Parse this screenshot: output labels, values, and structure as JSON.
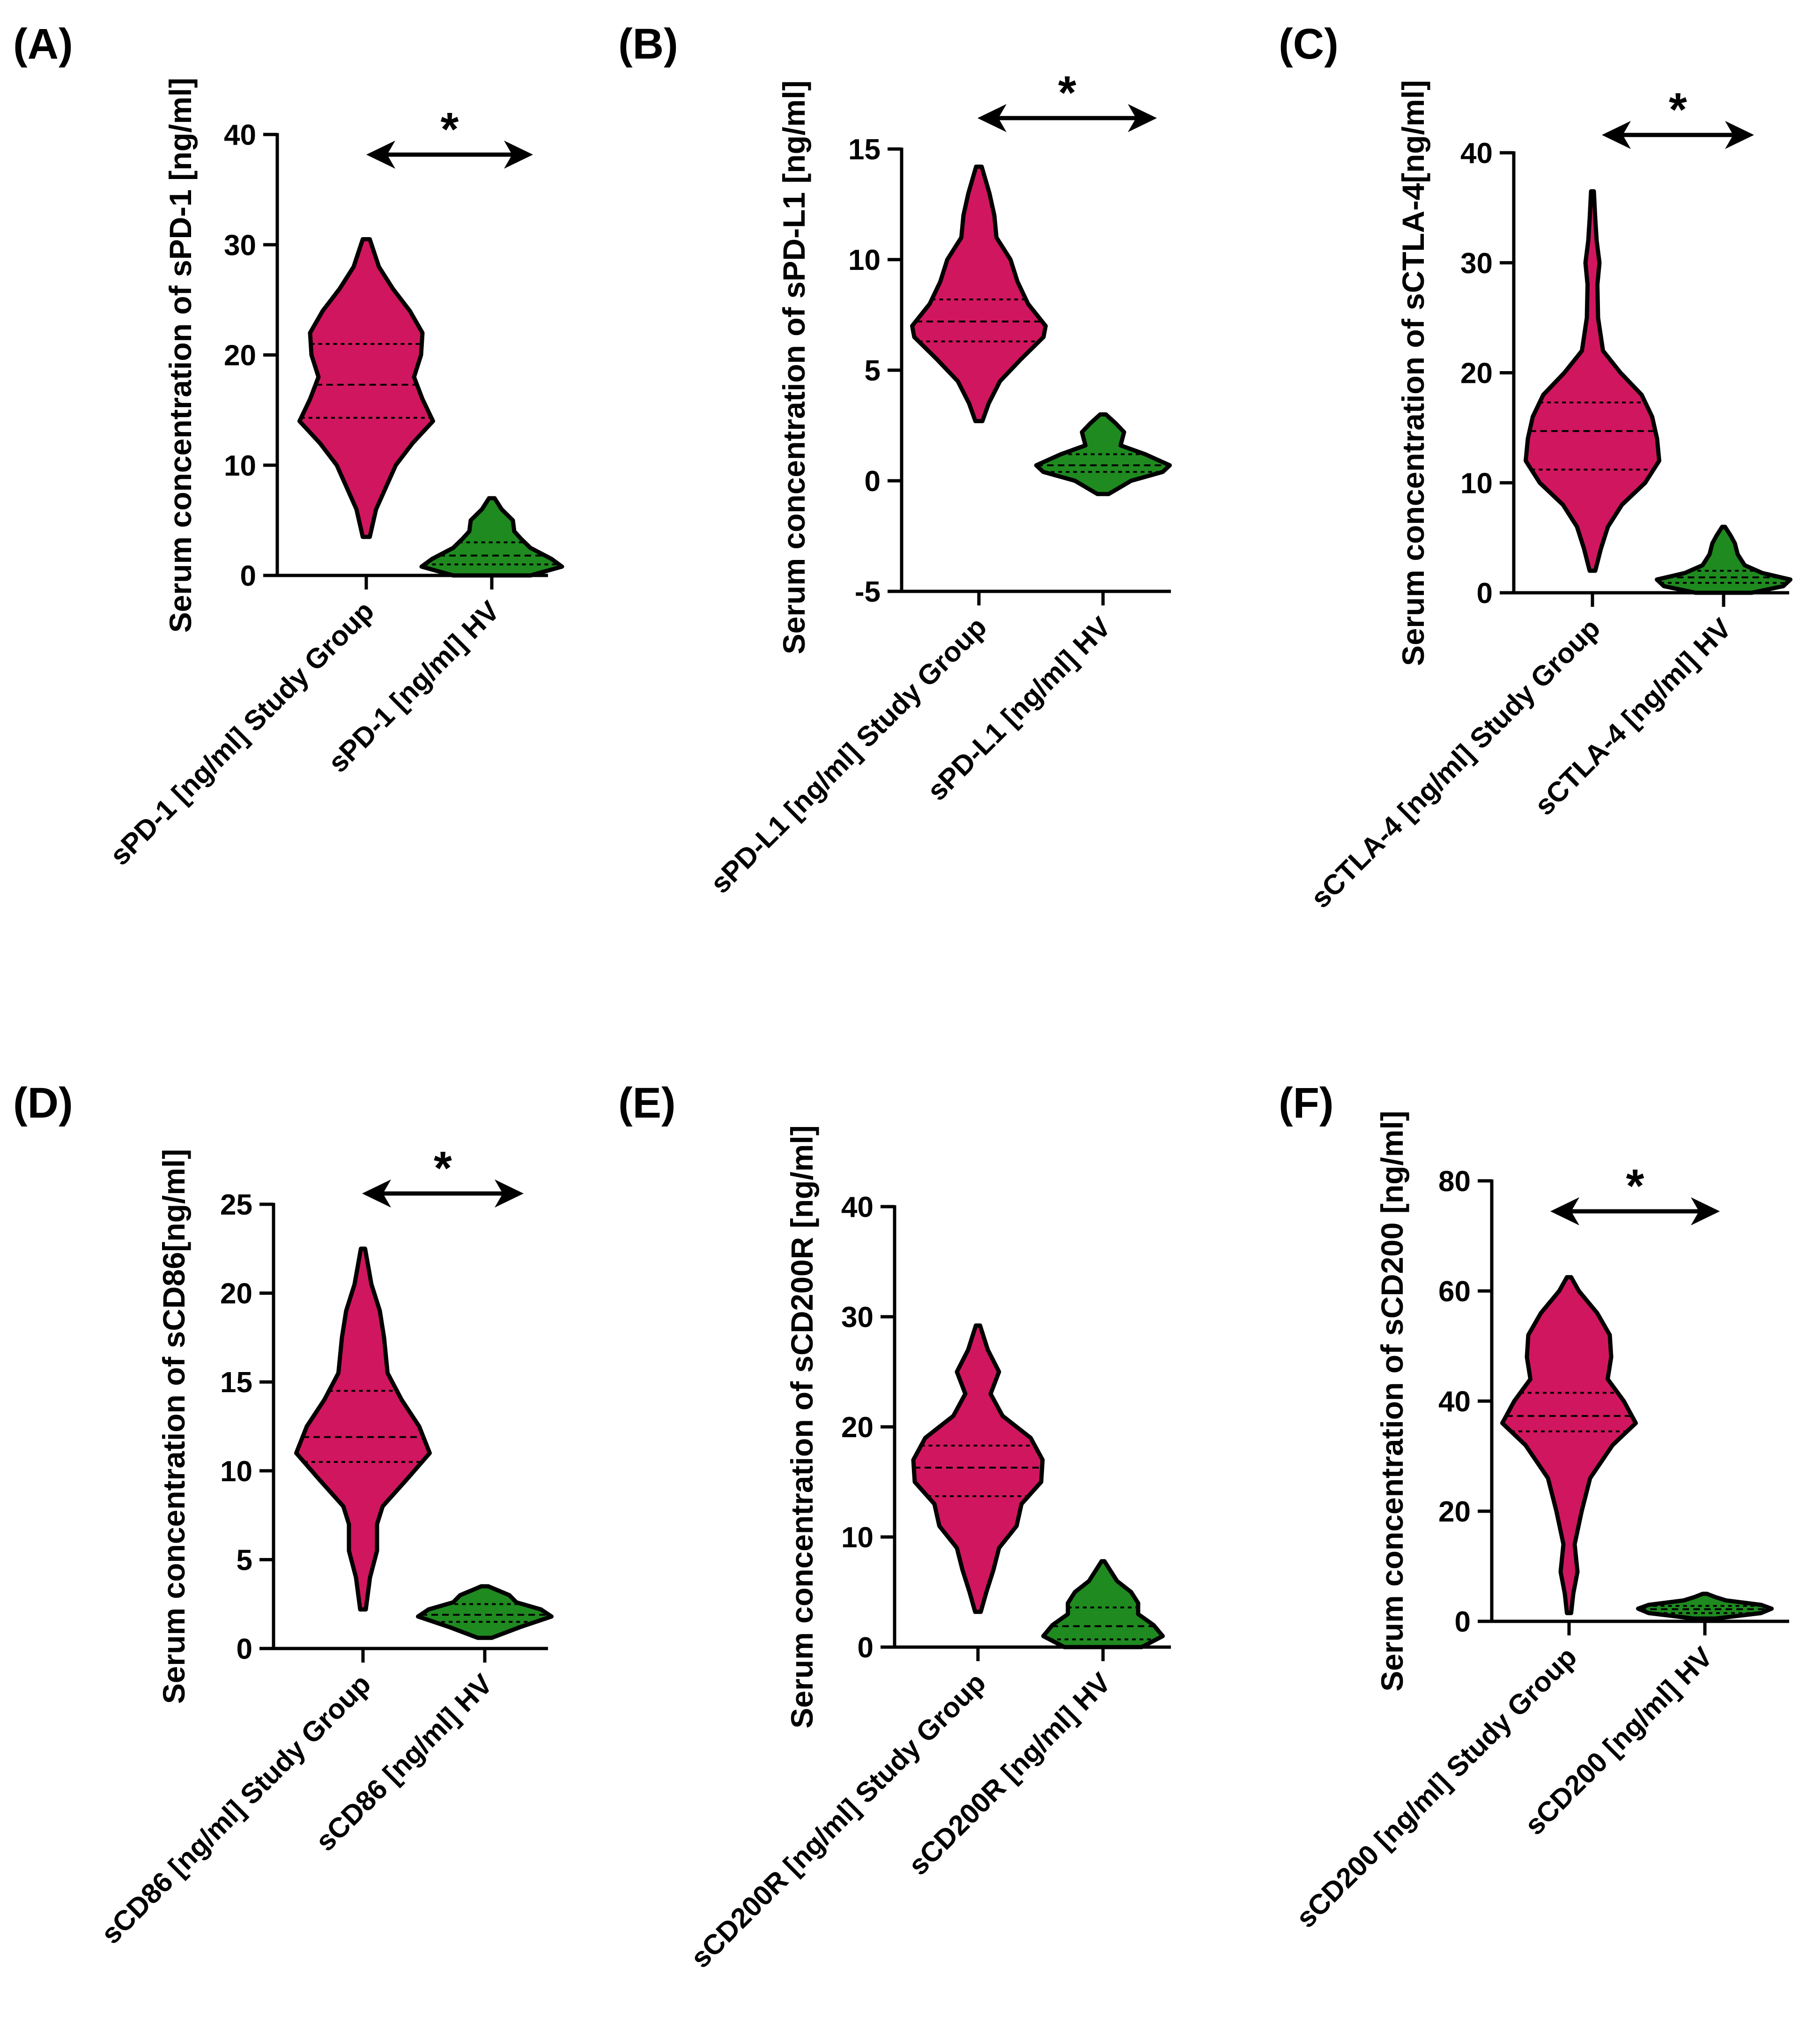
{
  "colors": {
    "study": "#d0165e",
    "hv": "#1f8a1f",
    "axis": "#000000"
  },
  "chart_data": [
    {
      "type": "violin",
      "panel": "(A)",
      "ylabel": "Serum concentration of sPD-1 [ng/ml]",
      "ylim": [
        0,
        40
      ],
      "yticks": [
        0,
        10,
        20,
        30,
        40
      ],
      "yticks_text": [
        "0",
        "10",
        "20",
        "30",
        "40"
      ],
      "categories": [
        "sPD-1 [ng/ml] Study Group",
        "sPD-1 [ng/ml] HV"
      ],
      "significance": "*",
      "series": [
        {
          "min": 3.5,
          "max": 30.5,
          "q1": 14.3,
          "median": 17.3,
          "q3": 21.0,
          "profile": [
            [
              3.5,
              0.05
            ],
            [
              6,
              0.14
            ],
            [
              8,
              0.28
            ],
            [
              10,
              0.42
            ],
            [
              12,
              0.66
            ],
            [
              14,
              0.95
            ],
            [
              16,
              0.8
            ],
            [
              18,
              0.68
            ],
            [
              20,
              0.78
            ],
            [
              22,
              0.8
            ],
            [
              24,
              0.62
            ],
            [
              26,
              0.38
            ],
            [
              28,
              0.18
            ],
            [
              30.5,
              0.05
            ]
          ]
        },
        {
          "min": 0,
          "max": 7,
          "q1": 1.0,
          "median": 1.8,
          "q3": 3.0,
          "profile": [
            [
              0,
              0.55
            ],
            [
              0.8,
              1.0
            ],
            [
              1.5,
              0.85
            ],
            [
              2.5,
              0.55
            ],
            [
              3.3,
              0.42
            ],
            [
              4,
              0.32
            ],
            [
              5,
              0.3
            ],
            [
              6,
              0.14
            ],
            [
              7,
              0.04
            ]
          ]
        }
      ]
    },
    {
      "type": "violin",
      "panel": "(B)",
      "ylabel": "Serum concentration of sPD-L1 [ng/ml]",
      "ylim": [
        -5,
        15
      ],
      "yticks": [
        -5,
        0,
        5,
        10,
        15
      ],
      "yticks_text": [
        "-5",
        "0",
        "5",
        "10",
        "15"
      ],
      "categories": [
        "sPD-L1 [ng/ml] Study Group",
        "sPD-L1 [ng/ml] HV"
      ],
      "significance": "*",
      "series": [
        {
          "min": 2.7,
          "max": 14.2,
          "q1": 6.3,
          "median": 7.2,
          "q3": 8.2,
          "profile": [
            [
              2.7,
              0.05
            ],
            [
              3.5,
              0.14
            ],
            [
              4.5,
              0.3
            ],
            [
              5.5,
              0.6
            ],
            [
              6.5,
              0.92
            ],
            [
              7,
              0.95
            ],
            [
              8,
              0.7
            ],
            [
              9,
              0.55
            ],
            [
              10,
              0.45
            ],
            [
              11,
              0.25
            ],
            [
              12,
              0.22
            ],
            [
              13,
              0.15
            ],
            [
              14.2,
              0.04
            ]
          ]
        },
        {
          "min": -0.6,
          "max": 3.0,
          "q1": 0.4,
          "median": 0.7,
          "q3": 1.2,
          "profile": [
            [
              -0.6,
              0.08
            ],
            [
              0,
              0.4
            ],
            [
              0.4,
              0.85
            ],
            [
              0.7,
              0.95
            ],
            [
              1.2,
              0.6
            ],
            [
              1.6,
              0.25
            ],
            [
              2.2,
              0.3
            ],
            [
              2.6,
              0.18
            ],
            [
              3.0,
              0.04
            ]
          ]
        }
      ]
    },
    {
      "type": "violin",
      "panel": "(C)",
      "ylabel": "Serum concentration of sCTLA-4[ng/ml]",
      "ylim": [
        0,
        40
      ],
      "yticks": [
        0,
        10,
        20,
        30,
        40
      ],
      "yticks_text": [
        "0",
        "10",
        "20",
        "30",
        "40"
      ],
      "categories": [
        "sCTLA-4 [ng/ml] Study Group",
        "sCTLA-4 [ng/ml] HV"
      ],
      "significance": "*",
      "series": [
        {
          "min": 2,
          "max": 36.5,
          "q1": 11.2,
          "median": 14.7,
          "q3": 17.3,
          "profile": [
            [
              2,
              0.04
            ],
            [
              4,
              0.12
            ],
            [
              6,
              0.22
            ],
            [
              8,
              0.42
            ],
            [
              10,
              0.75
            ],
            [
              12,
              0.95
            ],
            [
              14,
              0.92
            ],
            [
              16,
              0.85
            ],
            [
              18,
              0.7
            ],
            [
              20,
              0.4
            ],
            [
              22,
              0.15
            ],
            [
              25,
              0.08
            ],
            [
              28,
              0.07
            ],
            [
              30,
              0.1
            ],
            [
              32,
              0.06
            ],
            [
              34,
              0.04
            ],
            [
              36.5,
              0.02
            ]
          ]
        },
        {
          "min": 0,
          "max": 6,
          "q1": 0.9,
          "median": 1.4,
          "q3": 2.0,
          "profile": [
            [
              0,
              0.4
            ],
            [
              0.6,
              0.85
            ],
            [
              1.2,
              0.95
            ],
            [
              1.8,
              0.55
            ],
            [
              2.5,
              0.3
            ],
            [
              3.5,
              0.2
            ],
            [
              4.5,
              0.16
            ],
            [
              5.2,
              0.1
            ],
            [
              6,
              0.02
            ]
          ]
        }
      ]
    },
    {
      "type": "violin",
      "panel": "(D)",
      "ylabel": "Serum concentration of sCD86[ng/ml]",
      "ylim": [
        0,
        25
      ],
      "yticks": [
        0,
        5,
        10,
        15,
        20,
        25
      ],
      "yticks_text": [
        "0",
        "5",
        "10",
        "15",
        "20",
        "25"
      ],
      "categories": [
        "sCD86 [ng/ml] Study Group",
        "sCD86 [ng/ml] HV"
      ],
      "significance": "*",
      "series": [
        {
          "min": 2.2,
          "max": 22.5,
          "q1": 10.5,
          "median": 11.9,
          "q3": 14.5,
          "profile": [
            [
              2.2,
              0.04
            ],
            [
              4,
              0.1
            ],
            [
              5.5,
              0.2
            ],
            [
              7,
              0.2
            ],
            [
              8,
              0.28
            ],
            [
              9.5,
              0.62
            ],
            [
              11,
              0.95
            ],
            [
              12.5,
              0.8
            ],
            [
              14,
              0.55
            ],
            [
              15.5,
              0.35
            ],
            [
              17.5,
              0.3
            ],
            [
              19,
              0.24
            ],
            [
              20.5,
              0.12
            ],
            [
              22.5,
              0.03
            ]
          ]
        },
        {
          "min": 0.6,
          "max": 3.5,
          "q1": 1.5,
          "median": 1.9,
          "q3": 2.5,
          "profile": [
            [
              0.6,
              0.1
            ],
            [
              1.2,
              0.5
            ],
            [
              1.8,
              0.95
            ],
            [
              2.2,
              0.8
            ],
            [
              2.6,
              0.45
            ],
            [
              3.0,
              0.35
            ],
            [
              3.5,
              0.05
            ]
          ]
        }
      ]
    },
    {
      "type": "violin",
      "panel": "(E)",
      "ylabel": "Serum concentration of sCD200R [ng/ml]",
      "ylim": [
        0,
        40
      ],
      "yticks": [
        0,
        10,
        20,
        30,
        40
      ],
      "yticks_text": [
        "0",
        "10",
        "20",
        "30",
        "40"
      ],
      "categories": [
        "sCD200R [ng/ml] Study Group",
        "sCD200R [ng/ml] HV"
      ],
      "significance": "",
      "series": [
        {
          "min": 3.2,
          "max": 29.2,
          "q1": 13.7,
          "median": 16.3,
          "q3": 18.3,
          "profile": [
            [
              3.2,
              0.04
            ],
            [
              5,
              0.12
            ],
            [
              7,
              0.22
            ],
            [
              9,
              0.3
            ],
            [
              11,
              0.55
            ],
            [
              13,
              0.62
            ],
            [
              15,
              0.9
            ],
            [
              17,
              0.92
            ],
            [
              19,
              0.75
            ],
            [
              21,
              0.35
            ],
            [
              23,
              0.18
            ],
            [
              25,
              0.3
            ],
            [
              27,
              0.14
            ],
            [
              29.2,
              0.03
            ]
          ]
        },
        {
          "min": 0,
          "max": 7.8,
          "q1": 0.7,
          "median": 1.9,
          "q3": 3.6,
          "profile": [
            [
              0,
              0.55
            ],
            [
              1,
              0.85
            ],
            [
              2,
              0.72
            ],
            [
              3,
              0.5
            ],
            [
              4,
              0.5
            ],
            [
              5,
              0.4
            ],
            [
              6,
              0.2
            ],
            [
              7,
              0.1
            ],
            [
              7.8,
              0.02
            ]
          ]
        }
      ]
    },
    {
      "type": "violin",
      "panel": "(F)",
      "ylabel": "Serum concentration of sCD200 [ng/ml]",
      "ylim": [
        0,
        80
      ],
      "yticks": [
        0,
        20,
        40,
        60,
        80
      ],
      "yticks_text": [
        "0",
        "20",
        "40",
        "60",
        "80"
      ],
      "categories": [
        "sCD200 [ng/ml] Study Group",
        "sCD200 [ng/ml] HV"
      ],
      "significance": "*",
      "series": [
        {
          "min": 1.5,
          "max": 62.5,
          "q1": 34.5,
          "median": 37.3,
          "q3": 41.5,
          "profile": [
            [
              1.5,
              0.03
            ],
            [
              5,
              0.06
            ],
            [
              9,
              0.12
            ],
            [
              14,
              0.08
            ],
            [
              20,
              0.18
            ],
            [
              26,
              0.3
            ],
            [
              32,
              0.62
            ],
            [
              36,
              0.95
            ],
            [
              40,
              0.78
            ],
            [
              44,
              0.55
            ],
            [
              48,
              0.6
            ],
            [
              52,
              0.58
            ],
            [
              56,
              0.4
            ],
            [
              60,
              0.14
            ],
            [
              62.5,
              0.03
            ]
          ]
        },
        {
          "min": 0.5,
          "max": 5,
          "q1": 1.5,
          "median": 2.2,
          "q3": 2.8,
          "profile": [
            [
              0.5,
              0.15
            ],
            [
              1.5,
              0.8
            ],
            [
              2.3,
              0.95
            ],
            [
              3,
              0.8
            ],
            [
              3.8,
              0.3
            ],
            [
              4.4,
              0.15
            ],
            [
              5,
              0.03
            ]
          ]
        }
      ]
    }
  ]
}
